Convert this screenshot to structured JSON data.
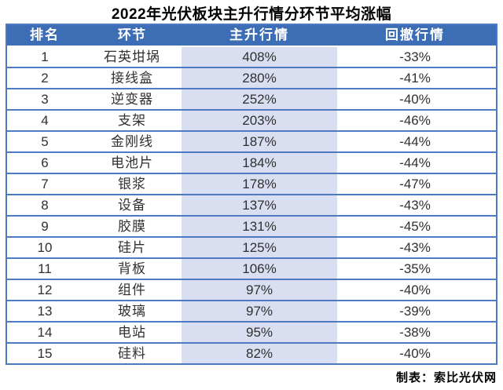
{
  "title": "2022年光伏板块主升行情分环节平均涨幅",
  "table": {
    "headers": [
      "排名",
      "环节",
      "主升行情",
      "回撤行情"
    ],
    "rows": [
      {
        "rank": "1",
        "segment": "石英坩埚",
        "main_rise": "408%",
        "pullback": "-33%"
      },
      {
        "rank": "2",
        "segment": "接线盒",
        "main_rise": "280%",
        "pullback": "-41%"
      },
      {
        "rank": "3",
        "segment": "逆变器",
        "main_rise": "252%",
        "pullback": "-40%"
      },
      {
        "rank": "4",
        "segment": "支架",
        "main_rise": "203%",
        "pullback": "-46%"
      },
      {
        "rank": "5",
        "segment": "金刚线",
        "main_rise": "187%",
        "pullback": "-44%"
      },
      {
        "rank": "6",
        "segment": "电池片",
        "main_rise": "184%",
        "pullback": "-44%"
      },
      {
        "rank": "7",
        "segment": "银浆",
        "main_rise": "178%",
        "pullback": "-47%"
      },
      {
        "rank": "8",
        "segment": "设备",
        "main_rise": "137%",
        "pullback": "-43%"
      },
      {
        "rank": "9",
        "segment": "胶膜",
        "main_rise": "131%",
        "pullback": "-45%"
      },
      {
        "rank": "10",
        "segment": "硅片",
        "main_rise": "125%",
        "pullback": "-43%"
      },
      {
        "rank": "11",
        "segment": "背板",
        "main_rise": "106%",
        "pullback": "-35%"
      },
      {
        "rank": "12",
        "segment": "组件",
        "main_rise": "97%",
        "pullback": "-40%"
      },
      {
        "rank": "13",
        "segment": "玻璃",
        "main_rise": "97%",
        "pullback": "-39%"
      },
      {
        "rank": "14",
        "segment": "电站",
        "main_rise": "95%",
        "pullback": "-38%"
      },
      {
        "rank": "15",
        "segment": "硅料",
        "main_rise": "82%",
        "pullback": "-40%"
      }
    ]
  },
  "footer": {
    "credit": "制表：索比光伏网"
  },
  "colors": {
    "header_bg": "#3c6db5",
    "row_border": "#4e7ac4",
    "highlight_column_bg": "#d9def1",
    "body_text": "#303030",
    "header_text": "#ffffff"
  }
}
